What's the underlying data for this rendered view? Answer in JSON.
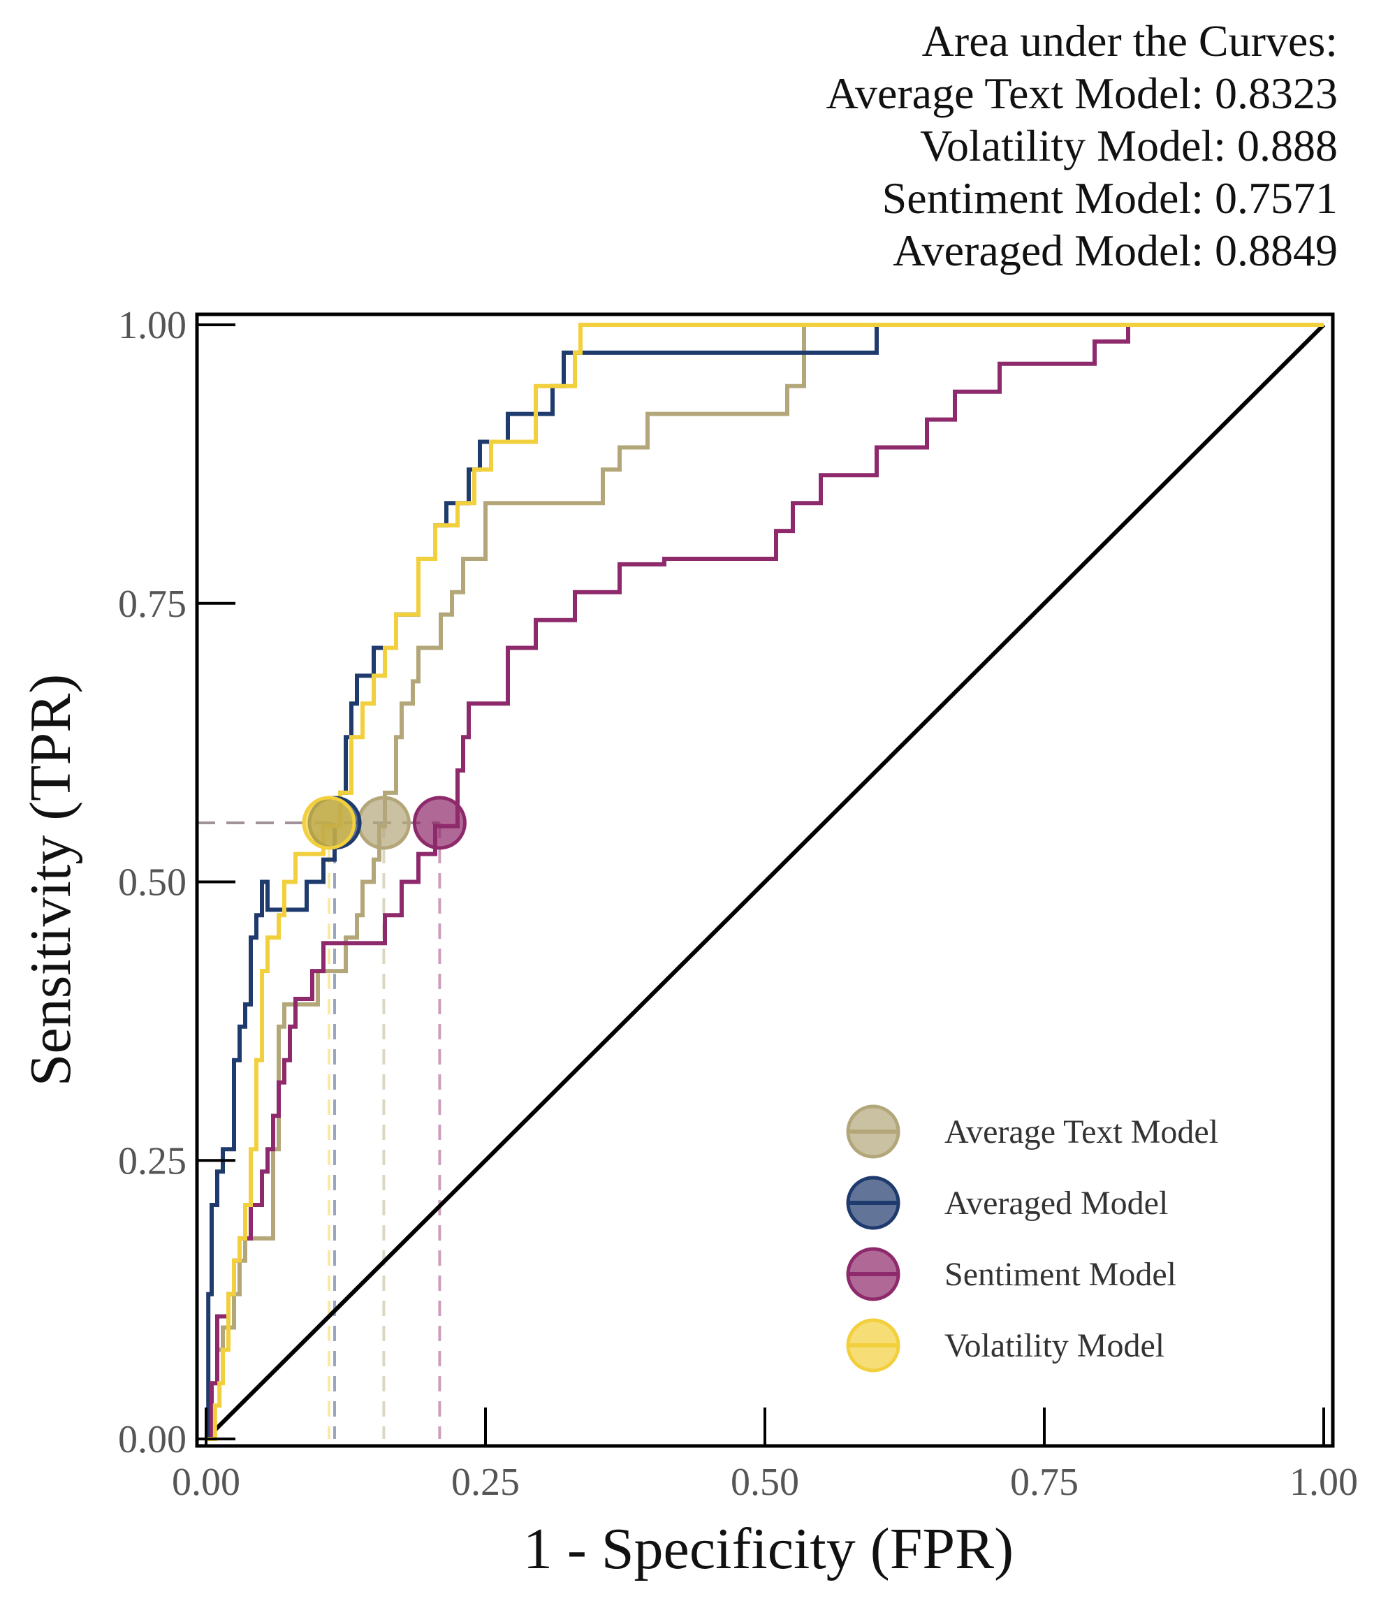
{
  "chart_data": {
    "type": "line",
    "title": "Area under the Curves:",
    "xlabel": "1 - Specificity (FPR)",
    "ylabel": "Sensitivity (TPR)",
    "xlim": [
      0,
      1
    ],
    "ylim": [
      0,
      1
    ],
    "xticks": [
      "0.00",
      "0.25",
      "0.50",
      "0.75",
      "1.00"
    ],
    "yticks": [
      "0.00",
      "0.25",
      "0.50",
      "0.75",
      "1.00"
    ],
    "grid": false,
    "legend_position": "bottom-right",
    "auc_annotations": [
      "Average Text Model: 0.8323",
      "Volatility Model: 0.888",
      "Sentiment Model: 0.7571",
      "Averaged Model: 0.8849"
    ],
    "threshold_tpr": 0.553,
    "diagonal": [
      [
        0,
        0
      ],
      [
        1,
        1
      ]
    ],
    "series": [
      {
        "name": "Average Text Model",
        "color": "#b3a77a",
        "operating_point": {
          "fpr": 0.159,
          "tpr": 0.553
        },
        "points": [
          [
            0,
            0
          ],
          [
            0.005,
            0
          ],
          [
            0.005,
            0.05
          ],
          [
            0.01,
            0.05
          ],
          [
            0.01,
            0.08
          ],
          [
            0.015,
            0.08
          ],
          [
            0.015,
            0.1
          ],
          [
            0.025,
            0.1
          ],
          [
            0.025,
            0.13
          ],
          [
            0.03,
            0.13
          ],
          [
            0.03,
            0.16
          ],
          [
            0.035,
            0.16
          ],
          [
            0.035,
            0.18
          ],
          [
            0.06,
            0.18
          ],
          [
            0.06,
            0.26
          ],
          [
            0.065,
            0.26
          ],
          [
            0.065,
            0.37
          ],
          [
            0.07,
            0.37
          ],
          [
            0.07,
            0.39
          ],
          [
            0.1,
            0.39
          ],
          [
            0.1,
            0.42
          ],
          [
            0.125,
            0.42
          ],
          [
            0.125,
            0.45
          ],
          [
            0.135,
            0.45
          ],
          [
            0.135,
            0.47
          ],
          [
            0.14,
            0.47
          ],
          [
            0.14,
            0.5
          ],
          [
            0.15,
            0.5
          ],
          [
            0.15,
            0.52
          ],
          [
            0.155,
            0.52
          ],
          [
            0.155,
            0.55
          ],
          [
            0.16,
            0.55
          ],
          [
            0.16,
            0.58
          ],
          [
            0.17,
            0.58
          ],
          [
            0.17,
            0.63
          ],
          [
            0.175,
            0.63
          ],
          [
            0.175,
            0.66
          ],
          [
            0.185,
            0.66
          ],
          [
            0.185,
            0.68
          ],
          [
            0.19,
            0.68
          ],
          [
            0.19,
            0.71
          ],
          [
            0.21,
            0.71
          ],
          [
            0.21,
            0.74
          ],
          [
            0.22,
            0.74
          ],
          [
            0.22,
            0.76
          ],
          [
            0.23,
            0.76
          ],
          [
            0.23,
            0.79
          ],
          [
            0.25,
            0.79
          ],
          [
            0.25,
            0.84
          ],
          [
            0.355,
            0.84
          ],
          [
            0.355,
            0.87
          ],
          [
            0.37,
            0.87
          ],
          [
            0.37,
            0.89
          ],
          [
            0.395,
            0.89
          ],
          [
            0.395,
            0.92
          ],
          [
            0.52,
            0.92
          ],
          [
            0.52,
            0.945
          ],
          [
            0.535,
            0.945
          ],
          [
            0.535,
            1
          ],
          [
            1,
            1
          ]
        ]
      },
      {
        "name": "Averaged Model",
        "color": "#1f3b6e",
        "operating_point": {
          "fpr": 0.115,
          "tpr": 0.553
        },
        "points": [
          [
            0,
            0
          ],
          [
            0.002,
            0
          ],
          [
            0.002,
            0.13
          ],
          [
            0.005,
            0.13
          ],
          [
            0.005,
            0.21
          ],
          [
            0.01,
            0.21
          ],
          [
            0.01,
            0.24
          ],
          [
            0.015,
            0.24
          ],
          [
            0.015,
            0.26
          ],
          [
            0.025,
            0.26
          ],
          [
            0.025,
            0.34
          ],
          [
            0.03,
            0.34
          ],
          [
            0.03,
            0.37
          ],
          [
            0.035,
            0.37
          ],
          [
            0.035,
            0.39
          ],
          [
            0.04,
            0.39
          ],
          [
            0.04,
            0.45
          ],
          [
            0.045,
            0.45
          ],
          [
            0.045,
            0.47
          ],
          [
            0.05,
            0.47
          ],
          [
            0.05,
            0.5
          ],
          [
            0.055,
            0.5
          ],
          [
            0.055,
            0.475
          ],
          [
            0.09,
            0.475
          ],
          [
            0.09,
            0.5
          ],
          [
            0.105,
            0.5
          ],
          [
            0.105,
            0.52
          ],
          [
            0.115,
            0.52
          ],
          [
            0.115,
            0.55
          ],
          [
            0.12,
            0.55
          ],
          [
            0.12,
            0.58
          ],
          [
            0.125,
            0.58
          ],
          [
            0.125,
            0.63
          ],
          [
            0.13,
            0.63
          ],
          [
            0.13,
            0.66
          ],
          [
            0.135,
            0.66
          ],
          [
            0.135,
            0.685
          ],
          [
            0.15,
            0.685
          ],
          [
            0.15,
            0.71
          ],
          [
            0.17,
            0.71
          ],
          [
            0.17,
            0.74
          ],
          [
            0.19,
            0.74
          ],
          [
            0.19,
            0.79
          ],
          [
            0.205,
            0.79
          ],
          [
            0.205,
            0.82
          ],
          [
            0.215,
            0.82
          ],
          [
            0.215,
            0.84
          ],
          [
            0.235,
            0.84
          ],
          [
            0.235,
            0.87
          ],
          [
            0.245,
            0.87
          ],
          [
            0.245,
            0.895
          ],
          [
            0.27,
            0.895
          ],
          [
            0.27,
            0.92
          ],
          [
            0.31,
            0.92
          ],
          [
            0.31,
            0.945
          ],
          [
            0.32,
            0.945
          ],
          [
            0.32,
            0.975
          ],
          [
            0.6,
            0.975
          ],
          [
            0.6,
            1
          ],
          [
            1,
            1
          ]
        ]
      },
      {
        "name": "Sentiment Model",
        "color": "#8e2a6b",
        "operating_point": {
          "fpr": 0.209,
          "tpr": 0.553
        },
        "points": [
          [
            0,
            0
          ],
          [
            0.005,
            0
          ],
          [
            0.005,
            0.05
          ],
          [
            0.01,
            0.05
          ],
          [
            0.01,
            0.11
          ],
          [
            0.02,
            0.11
          ],
          [
            0.02,
            0.13
          ],
          [
            0.025,
            0.13
          ],
          [
            0.025,
            0.16
          ],
          [
            0.03,
            0.16
          ],
          [
            0.03,
            0.18
          ],
          [
            0.04,
            0.18
          ],
          [
            0.04,
            0.21
          ],
          [
            0.05,
            0.21
          ],
          [
            0.05,
            0.24
          ],
          [
            0.055,
            0.24
          ],
          [
            0.055,
            0.26
          ],
          [
            0.06,
            0.26
          ],
          [
            0.06,
            0.29
          ],
          [
            0.065,
            0.29
          ],
          [
            0.065,
            0.32
          ],
          [
            0.07,
            0.32
          ],
          [
            0.07,
            0.34
          ],
          [
            0.075,
            0.34
          ],
          [
            0.075,
            0.37
          ],
          [
            0.08,
            0.37
          ],
          [
            0.08,
            0.395
          ],
          [
            0.095,
            0.395
          ],
          [
            0.095,
            0.42
          ],
          [
            0.105,
            0.42
          ],
          [
            0.105,
            0.445
          ],
          [
            0.16,
            0.445
          ],
          [
            0.16,
            0.47
          ],
          [
            0.175,
            0.47
          ],
          [
            0.175,
            0.5
          ],
          [
            0.19,
            0.5
          ],
          [
            0.19,
            0.525
          ],
          [
            0.205,
            0.525
          ],
          [
            0.205,
            0.55
          ],
          [
            0.225,
            0.55
          ],
          [
            0.225,
            0.6
          ],
          [
            0.23,
            0.6
          ],
          [
            0.23,
            0.63
          ],
          [
            0.235,
            0.63
          ],
          [
            0.235,
            0.66
          ],
          [
            0.27,
            0.66
          ],
          [
            0.27,
            0.71
          ],
          [
            0.295,
            0.71
          ],
          [
            0.295,
            0.735
          ],
          [
            0.33,
            0.735
          ],
          [
            0.33,
            0.76
          ],
          [
            0.37,
            0.76
          ],
          [
            0.37,
            0.785
          ],
          [
            0.41,
            0.785
          ],
          [
            0.41,
            0.79
          ],
          [
            0.51,
            0.79
          ],
          [
            0.51,
            0.815
          ],
          [
            0.525,
            0.815
          ],
          [
            0.525,
            0.84
          ],
          [
            0.55,
            0.84
          ],
          [
            0.55,
            0.865
          ],
          [
            0.6,
            0.865
          ],
          [
            0.6,
            0.89
          ],
          [
            0.645,
            0.89
          ],
          [
            0.645,
            0.915
          ],
          [
            0.67,
            0.915
          ],
          [
            0.67,
            0.94
          ],
          [
            0.71,
            0.94
          ],
          [
            0.71,
            0.965
          ],
          [
            0.795,
            0.965
          ],
          [
            0.795,
            0.985
          ],
          [
            0.825,
            0.985
          ],
          [
            0.825,
            1
          ],
          [
            1,
            1
          ]
        ]
      },
      {
        "name": "Volatility Model",
        "color": "#f2cf3c",
        "operating_point": {
          "fpr": 0.11,
          "tpr": 0.553
        },
        "points": [
          [
            0,
            0
          ],
          [
            0.008,
            0
          ],
          [
            0.008,
            0.03
          ],
          [
            0.012,
            0.03
          ],
          [
            0.012,
            0.05
          ],
          [
            0.015,
            0.05
          ],
          [
            0.015,
            0.08
          ],
          [
            0.02,
            0.08
          ],
          [
            0.02,
            0.13
          ],
          [
            0.025,
            0.13
          ],
          [
            0.025,
            0.16
          ],
          [
            0.03,
            0.16
          ],
          [
            0.03,
            0.18
          ],
          [
            0.035,
            0.18
          ],
          [
            0.035,
            0.21
          ],
          [
            0.04,
            0.21
          ],
          [
            0.04,
            0.26
          ],
          [
            0.045,
            0.26
          ],
          [
            0.045,
            0.34
          ],
          [
            0.05,
            0.34
          ],
          [
            0.05,
            0.42
          ],
          [
            0.055,
            0.42
          ],
          [
            0.055,
            0.45
          ],
          [
            0.065,
            0.45
          ],
          [
            0.065,
            0.47
          ],
          [
            0.07,
            0.47
          ],
          [
            0.07,
            0.5
          ],
          [
            0.08,
            0.5
          ],
          [
            0.08,
            0.525
          ],
          [
            0.105,
            0.525
          ],
          [
            0.105,
            0.55
          ],
          [
            0.12,
            0.55
          ],
          [
            0.12,
            0.58
          ],
          [
            0.13,
            0.58
          ],
          [
            0.13,
            0.63
          ],
          [
            0.14,
            0.63
          ],
          [
            0.14,
            0.66
          ],
          [
            0.15,
            0.66
          ],
          [
            0.15,
            0.685
          ],
          [
            0.16,
            0.685
          ],
          [
            0.16,
            0.71
          ],
          [
            0.17,
            0.71
          ],
          [
            0.17,
            0.74
          ],
          [
            0.19,
            0.74
          ],
          [
            0.19,
            0.79
          ],
          [
            0.205,
            0.79
          ],
          [
            0.205,
            0.82
          ],
          [
            0.225,
            0.82
          ],
          [
            0.225,
            0.84
          ],
          [
            0.24,
            0.84
          ],
          [
            0.24,
            0.87
          ],
          [
            0.255,
            0.87
          ],
          [
            0.255,
            0.895
          ],
          [
            0.295,
            0.895
          ],
          [
            0.295,
            0.945
          ],
          [
            0.33,
            0.945
          ],
          [
            0.33,
            0.975
          ],
          [
            0.335,
            0.975
          ],
          [
            0.335,
            1
          ],
          [
            1,
            1
          ]
        ]
      }
    ]
  }
}
